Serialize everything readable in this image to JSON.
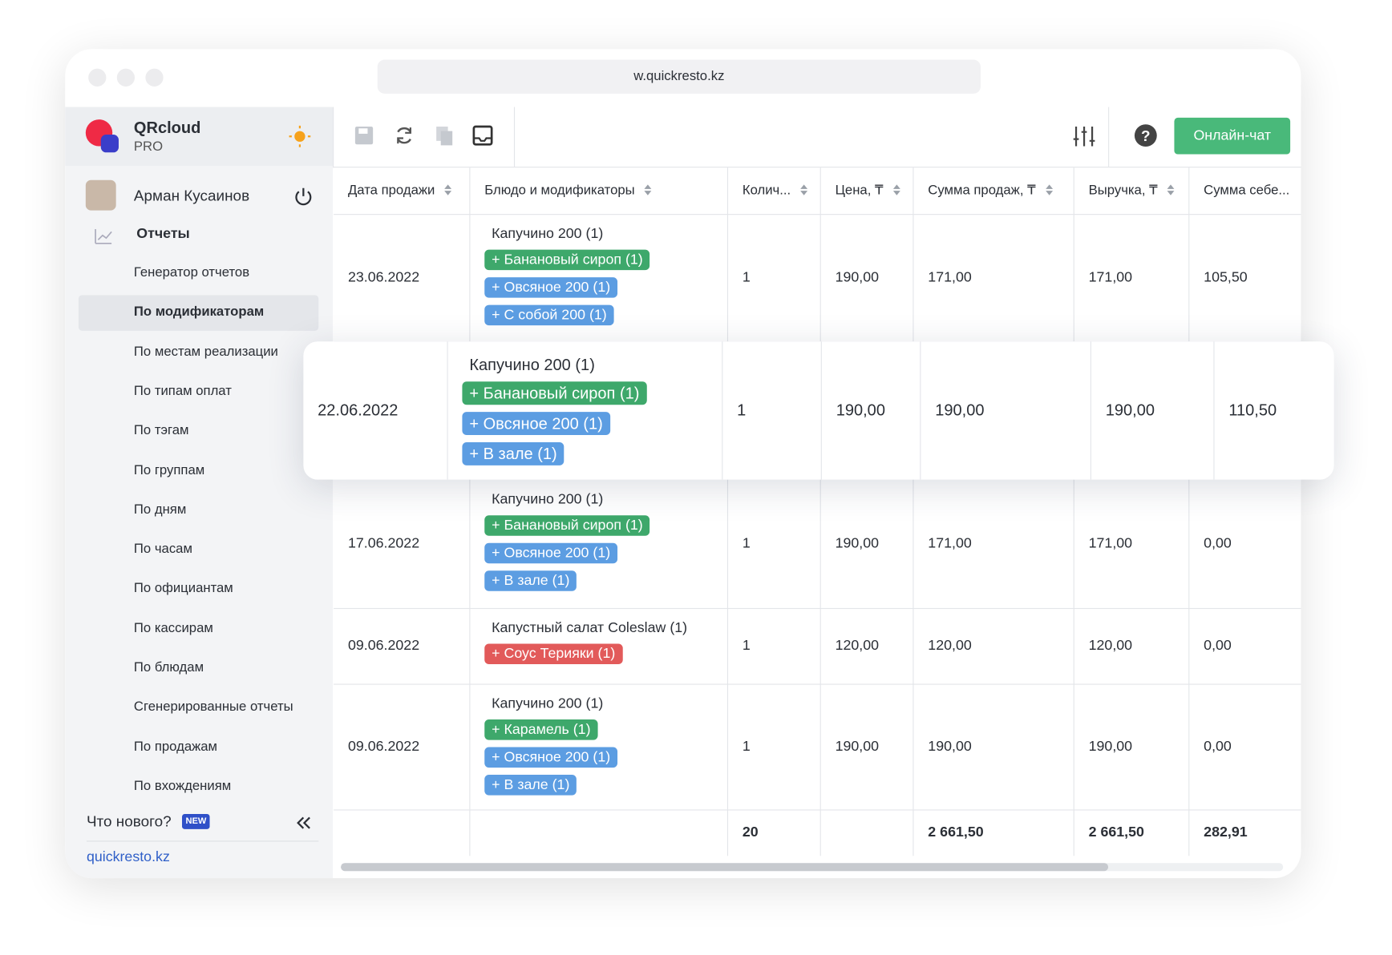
{
  "browser": {
    "url": "w.quickresto.kz"
  },
  "sidebar": {
    "brand": {
      "name": "QRcloud",
      "plan": "PRO"
    },
    "user": "Арман Кусаинов",
    "section": "Отчеты",
    "menu": [
      "Генератор отчетов",
      "По модификаторам",
      "По местам реализации",
      "По типам оплат",
      "По тэгам",
      "По группам",
      "По дням",
      "По часам",
      "По официантам",
      "По кассирам",
      "По блюдам",
      "Сгенерированные отчеты",
      "По продажам",
      "По вхождениям"
    ],
    "active_index": 1,
    "whats_new": "Что нового?",
    "badge": "NEW",
    "footer_link": "quickresto.kz"
  },
  "toolbar": {
    "chat_button": "Онлайн-чат"
  },
  "table": {
    "columns": [
      "Дата продажи",
      "Блюдо и модификаторы",
      "Колич...",
      "Цена, ₸",
      "Сумма продаж, ₸",
      "Выручка, ₸",
      "Сумма себе..."
    ],
    "highlighted_row": 1,
    "rows": [
      {
        "date": "23.06.2022",
        "dish": "Капучино 200 (1)",
        "modifiers": [
          {
            "text": "+ Банановый сироп (1)",
            "color": "#3ea86b"
          },
          {
            "text": "+ Овсяное 200 (1)",
            "color": "#5c9de2"
          },
          {
            "text": "+ С собой 200 (1)",
            "color": "#5c9de2"
          }
        ],
        "qty": "1",
        "price": "190,00",
        "sales": "171,00",
        "revenue": "171,00",
        "cost": "105,50"
      },
      {
        "date": "22.06.2022",
        "dish": "Капучино 200 (1)",
        "modifiers": [
          {
            "text": "+ Банановый сироп (1)",
            "color": "#3ea86b"
          },
          {
            "text": "+ Овсяное 200 (1)",
            "color": "#5c9de2"
          },
          {
            "text": "+ В зале (1)",
            "color": "#5c9de2"
          }
        ],
        "qty": "1",
        "price": "190,00",
        "sales": "190,00",
        "revenue": "190,00",
        "cost": "110,50"
      },
      {
        "date": "17.06.2022",
        "dish": "Капучино 200 (1)",
        "modifiers": [
          {
            "text": "+ Банановый сироп (1)",
            "color": "#3ea86b"
          },
          {
            "text": "+ Овсяное 200 (1)",
            "color": "#5c9de2"
          },
          {
            "text": "+ В зале (1)",
            "color": "#5c9de2"
          }
        ],
        "qty": "1",
        "price": "190,00",
        "sales": "171,00",
        "revenue": "171,00",
        "cost": "0,00"
      },
      {
        "date": "09.06.2022",
        "dish": "Капустный салат Coleslaw (1)",
        "modifiers": [
          {
            "text": "+ Соус Терияки (1)",
            "color": "#e25a5a"
          }
        ],
        "qty": "1",
        "price": "120,00",
        "sales": "120,00",
        "revenue": "120,00",
        "cost": "0,00"
      },
      {
        "date": "09.06.2022",
        "dish": "Капучино 200 (1)",
        "modifiers": [
          {
            "text": "+ Карамель (1)",
            "color": "#3ea86b"
          },
          {
            "text": "+ Овсяное 200 (1)",
            "color": "#5c9de2"
          },
          {
            "text": "+ В зале (1)",
            "color": "#5c9de2"
          }
        ],
        "qty": "1",
        "price": "190,00",
        "sales": "190,00",
        "revenue": "190,00",
        "cost": "0,00"
      }
    ],
    "totals": {
      "qty": "20",
      "sales": "2 661,50",
      "revenue": "2 661,50",
      "cost": "282,91"
    }
  }
}
